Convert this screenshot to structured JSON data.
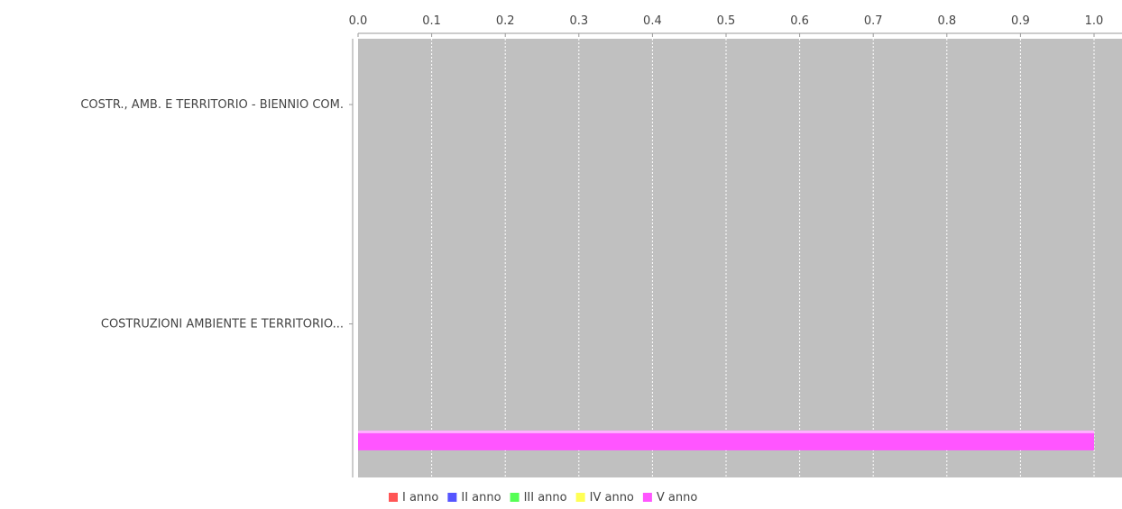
{
  "chart_data": {
    "type": "bar",
    "orientation": "horizontal",
    "categories": [
      "COSTR., AMB. E TERRITORIO - BIENNIO COM.",
      "COSTRUZIONI AMBIENTE E TERRITORIO..."
    ],
    "series": [
      {
        "name": "I anno",
        "values": [
          0,
          0
        ],
        "color": "#ff5555"
      },
      {
        "name": "II anno",
        "values": [
          0,
          0
        ],
        "color": "#5555ff"
      },
      {
        "name": "III anno",
        "values": [
          0,
          0
        ],
        "color": "#55ff55"
      },
      {
        "name": "IV anno",
        "values": [
          0,
          0
        ],
        "color": "#ffff55"
      },
      {
        "name": "V anno",
        "values": [
          0,
          1.0
        ],
        "color": "#ff55ff"
      }
    ],
    "x_ticks": [
      "0.0",
      "0.1",
      "0.2",
      "0.3",
      "0.4",
      "0.5",
      "0.6",
      "0.7",
      "0.8",
      "0.9",
      "1.0"
    ],
    "xlim": [
      0,
      1.04
    ],
    "x_axis_position": "top",
    "grid": true,
    "legend_position": "bottom",
    "plot_background": "#c0c0c0"
  }
}
